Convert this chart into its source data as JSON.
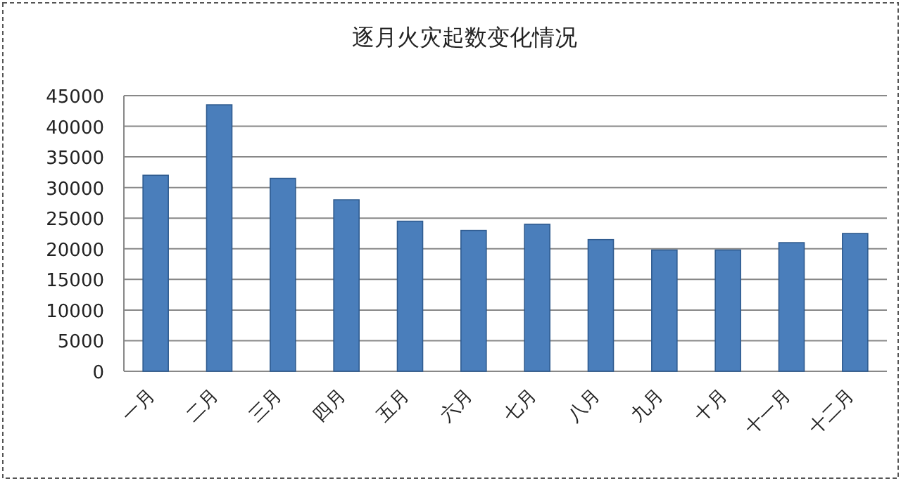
{
  "chart_data": {
    "type": "bar",
    "title": "逐月火灾起数变化情况",
    "categories": [
      "一月",
      "二月",
      "三月",
      "四月",
      "五月",
      "六月",
      "七月",
      "八月",
      "九月",
      "十月",
      "十一月",
      "十二月"
    ],
    "values": [
      32000,
      43500,
      31500,
      28000,
      24500,
      23000,
      24000,
      21500,
      19800,
      19800,
      21000,
      22500
    ],
    "color": "#4a7ebb",
    "ylim": [
      0,
      45000
    ],
    "yticks": [
      0,
      5000,
      10000,
      15000,
      20000,
      25000,
      30000,
      35000,
      40000,
      45000
    ],
    "grid": "y"
  }
}
